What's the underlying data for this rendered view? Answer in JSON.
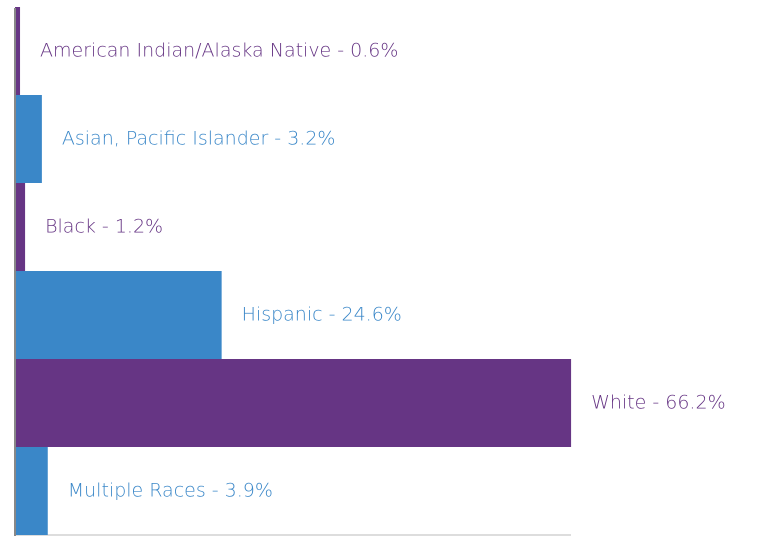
{
  "chart_data": {
    "type": "hbar",
    "values": [
      0.6,
      3.2,
      1.2,
      24.6,
      66.2,
      3.9
    ],
    "value_labels": [
      "American Indian/Alaska Native - 0.6%",
      "Asian, Pacific Islander - 3.2%",
      "Black - 1.2%",
      "Hispanic - 24.6%",
      "White - 66.2%",
      "Multiple Races - 3.9%"
    ],
    "colors": [
      "#663584",
      "#3a87c8",
      "#663584",
      "#3a87c8",
      "#663584",
      "#3a87c8"
    ]
  }
}
